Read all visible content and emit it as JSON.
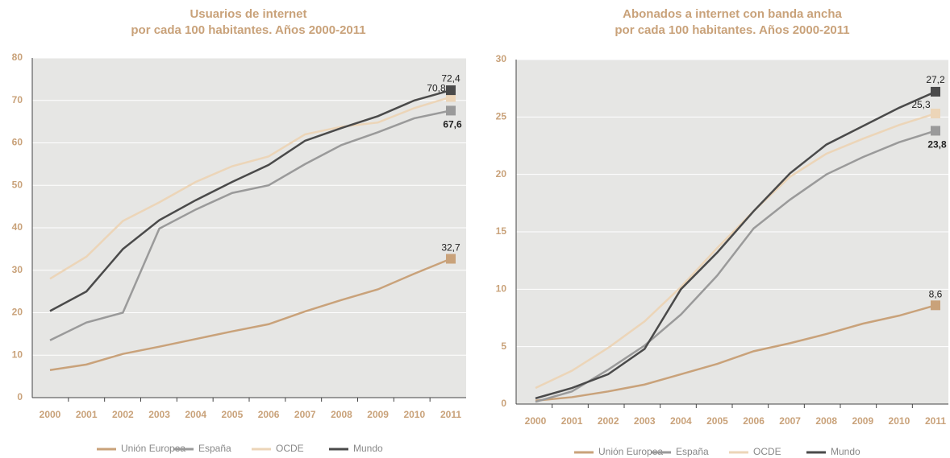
{
  "chart_data": [
    {
      "type": "line",
      "title": [
        "Usuarios de internet",
        "por cada 100 habitantes. Años 2000-2011"
      ],
      "categories": [
        "2000",
        "2001",
        "2002",
        "2003",
        "2004",
        "2005",
        "2006",
        "2007",
        "2008",
        "2009",
        "2010",
        "2011"
      ],
      "ylim": [
        0,
        80
      ],
      "yticks": [
        0,
        10,
        20,
        30,
        40,
        50,
        60,
        70,
        80
      ],
      "grid": true,
      "series": [
        {
          "name": "Unión Europea",
          "color": "#c9a27a",
          "values": [
            6.5,
            7.8,
            10.3,
            12,
            13.8,
            15.6,
            17.3,
            20.3,
            23,
            25.5,
            29.2,
            32.7
          ],
          "value_labels": [
            null,
            null,
            null,
            null,
            null,
            null,
            null,
            null,
            null,
            null,
            null,
            "32,7"
          ]
        },
        {
          "name": "España",
          "color": "#9a9a9a",
          "values": [
            13.5,
            17.7,
            20,
            39.8,
            44.3,
            48.2,
            50,
            55,
            59.5,
            62.5,
            65.8,
            67.6
          ],
          "value_labels": [
            null,
            null,
            null,
            null,
            null,
            null,
            null,
            null,
            null,
            null,
            null,
            "67,6"
          ]
        },
        {
          "name": "OCDE",
          "color": "#ecd5b8",
          "values": [
            28,
            33.2,
            41.6,
            46,
            50.8,
            54.5,
            56.8,
            62,
            63.8,
            64.8,
            68.2,
            70.8
          ],
          "value_labels": [
            null,
            null,
            null,
            null,
            null,
            null,
            null,
            null,
            null,
            null,
            null,
            "70,8"
          ]
        },
        {
          "name": "Mundo",
          "color": "#4a4a4a",
          "values": [
            20.4,
            25,
            35,
            41.8,
            46.5,
            50.8,
            54.8,
            60.5,
            63.5,
            66.3,
            70,
            72.4
          ],
          "value_labels": [
            null,
            null,
            null,
            null,
            null,
            null,
            null,
            null,
            null,
            null,
            null,
            "72,4"
          ]
        }
      ]
    },
    {
      "type": "line",
      "title": [
        "Abonados a internet con banda ancha",
        "por cada 100 habitantes. Años 2000-2011"
      ],
      "categories": [
        "2000",
        "2001",
        "2002",
        "2003",
        "2004",
        "2005",
        "2006",
        "2007",
        "2008",
        "2009",
        "2010",
        "2011"
      ],
      "ylim": [
        0,
        30
      ],
      "yticks": [
        0,
        5,
        10,
        15,
        20,
        25,
        30
      ],
      "grid": true,
      "series": [
        {
          "name": "Unión Europea",
          "color": "#c9a27a",
          "values": [
            0.3,
            0.6,
            1.1,
            1.7,
            2.6,
            3.5,
            4.6,
            5.3,
            6.1,
            7,
            7.7,
            8.6
          ],
          "value_labels": [
            null,
            null,
            null,
            null,
            null,
            null,
            null,
            null,
            null,
            null,
            null,
            "8,6"
          ]
        },
        {
          "name": "España",
          "color": "#9a9a9a",
          "values": [
            0.2,
            1.1,
            3,
            5.1,
            7.8,
            11.2,
            15.3,
            17.8,
            20,
            21.5,
            22.8,
            23.8
          ],
          "value_labels": [
            null,
            null,
            null,
            null,
            null,
            null,
            null,
            null,
            null,
            null,
            null,
            "23,8"
          ]
        },
        {
          "name": "OCDE",
          "color": "#ecd5b8",
          "values": [
            1.4,
            2.9,
            4.9,
            7.2,
            10.2,
            13.6,
            16.8,
            19.8,
            21.8,
            23.1,
            24.3,
            25.3
          ],
          "value_labels": [
            null,
            null,
            null,
            null,
            null,
            null,
            null,
            null,
            null,
            null,
            null,
            "25,3"
          ]
        },
        {
          "name": "Mundo",
          "color": "#4a4a4a",
          "values": [
            0.5,
            1.4,
            2.6,
            4.8,
            10,
            13.2,
            16.8,
            20.1,
            22.6,
            24.2,
            25.8,
            27.2
          ],
          "value_labels": [
            null,
            null,
            null,
            null,
            null,
            null,
            null,
            null,
            null,
            null,
            null,
            "27,2"
          ]
        }
      ]
    }
  ]
}
